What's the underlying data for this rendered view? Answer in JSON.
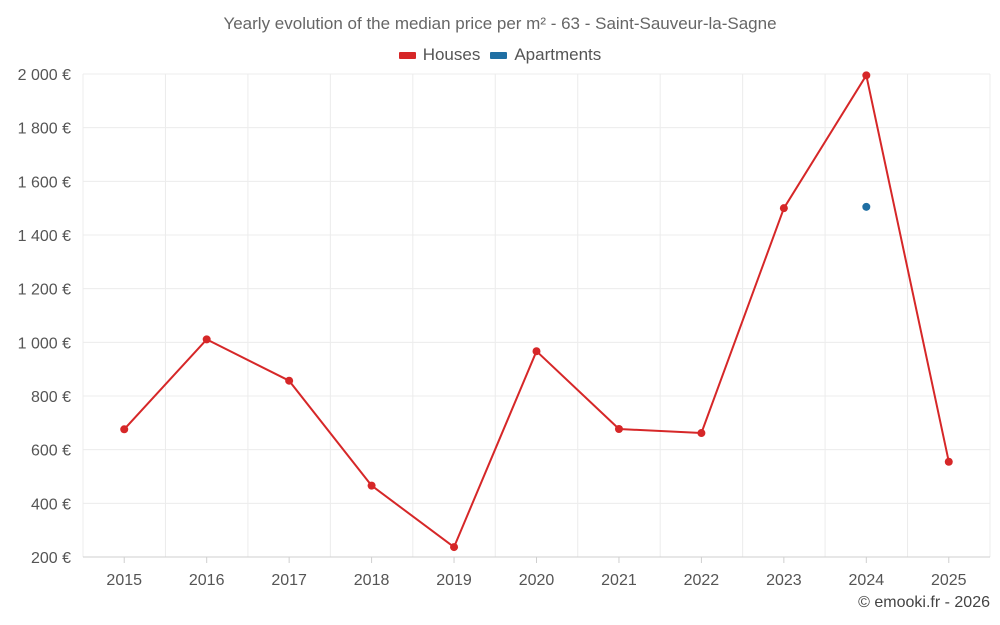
{
  "chart_data": {
    "type": "line",
    "title": "Yearly evolution of the median price per m² - 63 - Saint-Sauveur-la-Sagne",
    "x": [
      "2015",
      "2016",
      "2017",
      "2018",
      "2019",
      "2020",
      "2021",
      "2022",
      "2023",
      "2024",
      "2025"
    ],
    "series": [
      {
        "name": "Houses",
        "color": "#d62728",
        "values": [
          676,
          1011,
          857,
          466,
          237,
          967,
          677,
          662,
          1500,
          1995,
          555
        ]
      },
      {
        "name": "Apartments",
        "color": "#1f6fa3",
        "values": [
          null,
          null,
          null,
          null,
          null,
          null,
          null,
          null,
          null,
          1505,
          null
        ]
      }
    ],
    "ylim": [
      200,
      2000
    ],
    "yticks": [
      200,
      400,
      600,
      800,
      1000,
      1200,
      1400,
      1600,
      1800,
      2000
    ],
    "ytick_labels": [
      "200 €",
      "400 €",
      "600 €",
      "800 €",
      "1 000 €",
      "1 200 €",
      "1 400 €",
      "1 600 €",
      "1 800 €",
      "2 000 €"
    ],
    "grid": true,
    "legend_position": "top-center"
  },
  "credit": "© emooki.fr - 2026"
}
